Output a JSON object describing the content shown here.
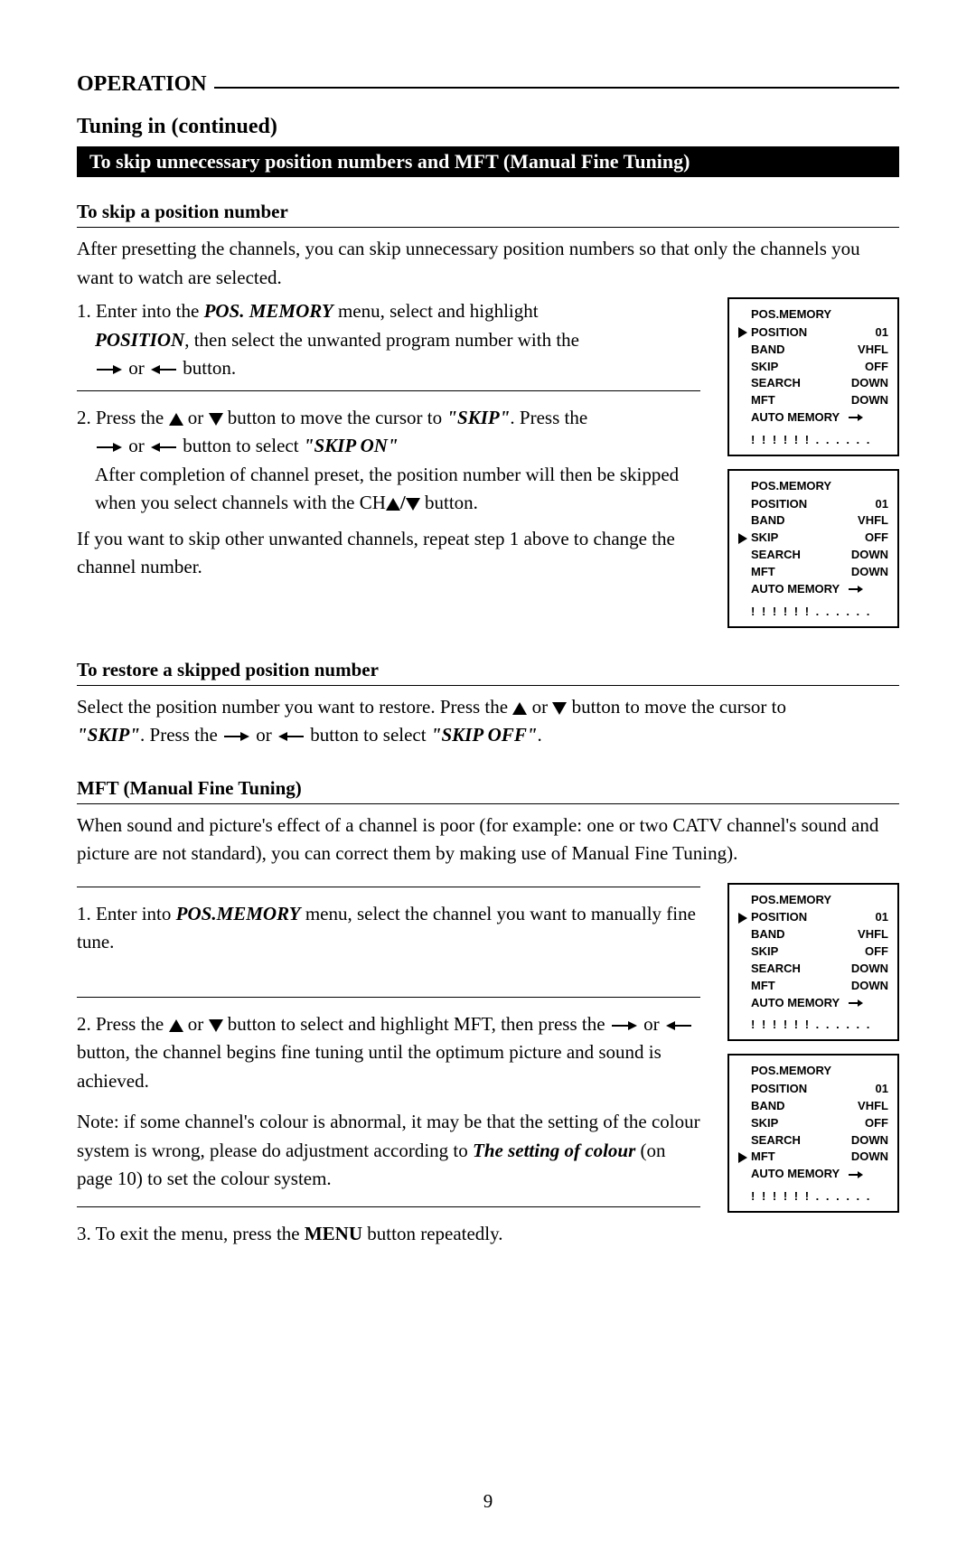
{
  "header": "OPERATION",
  "subheader": "Tuning in (continued)",
  "blackbar": "To skip unnecessary position numbers and MFT (Manual Fine Tuning)",
  "skip_pos": {
    "title": "To skip a position number",
    "intro": "After presetting the channels, you can skip unnecessary position numbers so that only the channels you want to watch are selected.",
    "step1_a": "1. Enter into the ",
    "step1_b": "POS. MEMORY",
    "step1_c": " menu, select and highlight",
    "step1_d": "POSITION",
    "step1_e": ", then select the unwanted program number with the",
    "step1_f": " or ",
    "step1_g": " button.",
    "step2_a": "2. Press the ",
    "step2_b": " or ",
    "step2_c": " button to move the cursor to ",
    "step2_d": "\"SKIP\"",
    "step2_e": ". Press the",
    "step2_f": " or ",
    "step2_g": " button to select ",
    "step2_h": "\"SKIP ON\"",
    "step2_i": "After completion of channel preset, the position number will then be skipped when you select channels with the CH",
    "step2_j": " button.",
    "tail": "If you want to skip other unwanted channels, repeat step 1 above to change the channel number."
  },
  "restore": {
    "title": "To restore a skipped position number",
    "a": "Select the position number you want to restore. Press the ",
    "b": " or ",
    "c": " button to move the cursor to ",
    "d": "\"SKIP\"",
    "e": ". Press the ",
    "f": " or ",
    "g": " button to select ",
    "h": "\"SKIP OFF\"",
    "i": "."
  },
  "mft": {
    "title": "MFT (Manual Fine Tuning)",
    "intro": "When sound and picture's effect of a channel is poor (for example: one or two CATV channel's sound and picture are not standard), you can correct them by making use of Manual Fine Tuning).",
    "step1_a": "1. Enter into ",
    "step1_b": "POS.MEMORY",
    "step1_c": " menu, select the channel you want to manually fine tune.",
    "step2_a": "2. Press the ",
    "step2_b": " or ",
    "step2_c": " button to select and highlight MFT, then press the ",
    "step2_d": " or ",
    "step2_e": " button, the channel begins fine tuning until the optimum picture and sound is achieved.",
    "note_a": "Note: if some channel's colour is abnormal, it may be that the setting of the colour system is wrong, please do adjustment according to ",
    "note_b": "The setting of colour",
    "note_c": " (on page 10) to set the colour system.",
    "step3_a": "3. To exit the menu, press the ",
    "step3_b": "MENU",
    "step3_c": " button repeatedly."
  },
  "osd_common": {
    "title": "POS.MEMORY",
    "labels": [
      "POSITION",
      "BAND",
      "SKIP",
      "SEARCH",
      "MFT",
      "AUTO MEMORY"
    ],
    "dots": "! ! ! ! ! ! . . . . . ."
  },
  "osd1": {
    "values": [
      "01",
      "VHFL",
      "OFF",
      "DOWN",
      "DOWN",
      "→"
    ],
    "cursor_index": 0
  },
  "osd2": {
    "values": [
      "01",
      "VHFL",
      "OFF",
      "DOWN",
      "DOWN",
      "→"
    ],
    "cursor_index": 2
  },
  "osd3": {
    "values": [
      "01",
      "VHFL",
      "OFF",
      "DOWN",
      "DOWN",
      "→"
    ],
    "cursor_index": 0
  },
  "osd4": {
    "values": [
      "01",
      "VHFL",
      "OFF",
      "DOWN",
      "DOWN",
      "→"
    ],
    "cursor_index": 4
  },
  "page_number": "9"
}
